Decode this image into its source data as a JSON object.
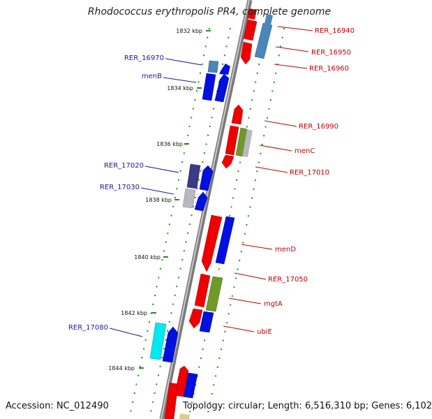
{
  "title": "Rhodococcus erythropolis PR4, complete genome",
  "footer": {
    "accession": "Accession: NC_012490",
    "topology": "Topology: circular; Length: 6,516,310 bp; Genes: 6,102"
  },
  "colors": {
    "red": "#ee0000",
    "blue": "#0010e0",
    "steel": "#4a86b8",
    "olive": "#6f9a28",
    "grey": "#b8b8c0",
    "navy": "#3a3a88",
    "cyan": "#00e8f0",
    "tan": "#d8cc90",
    "left_label": "#1a1aa0",
    "right_label": "#c00000",
    "tick": "#228822"
  },
  "kbp_ticks": [
    "1832 kbp",
    "1834 kbp",
    "1836 kbp",
    "1838 kbp",
    "1840 kbp",
    "1842 kbp",
    "1844 kbp"
  ],
  "genes": [
    {
      "label": "RER_16940",
      "side": "right",
      "color": "steel"
    },
    {
      "label": "RER_16950",
      "side": "right",
      "color": "red"
    },
    {
      "label": "RER_16960",
      "side": "right",
      "color": "red"
    },
    {
      "label": "RER_16970",
      "side": "left",
      "color": "steel"
    },
    {
      "label": "menB",
      "side": "left",
      "color": "blue"
    },
    {
      "label": "RER_16990",
      "side": "right",
      "color": "red"
    },
    {
      "label": "menC",
      "side": "right",
      "color": "olive"
    },
    {
      "label": "RER_17010",
      "side": "right",
      "color": "red"
    },
    {
      "label": "RER_17020",
      "side": "left",
      "color": "navy"
    },
    {
      "label": "RER_17030",
      "side": "left",
      "color": "grey"
    },
    {
      "label": "menD",
      "side": "right",
      "color": "blue"
    },
    {
      "label": "RER_17050",
      "side": "right",
      "color": "red"
    },
    {
      "label": "mgtA",
      "side": "right",
      "color": "olive"
    },
    {
      "label": "ubiE",
      "side": "right",
      "color": "blue"
    },
    {
      "label": "RER_17080",
      "side": "left",
      "color": "cyan"
    }
  ]
}
